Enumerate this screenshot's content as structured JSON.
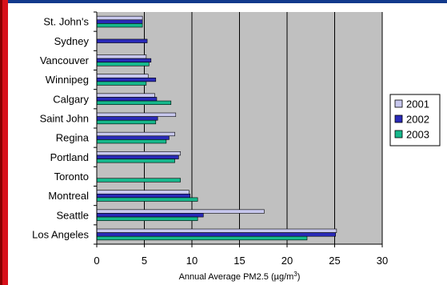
{
  "colors": {
    "plot_bg": "#c0c0c0",
    "series_2001": "#c8c8ee",
    "series_2002": "#2a2ab8",
    "series_2003": "#16b88c",
    "frame_red": "#d8101a",
    "frame_blue": "#123a8c"
  },
  "chart_data": {
    "type": "bar",
    "orientation": "horizontal",
    "categories": [
      "St. John's",
      "Sydney",
      "Vancouver",
      "Winnipeg",
      "Calgary",
      "Saint John",
      "Regina",
      "Portland",
      "Toronto",
      "Montreal",
      "Seattle",
      "Los Angeles"
    ],
    "series": [
      {
        "name": "2001",
        "values": [
          4.8,
          0,
          5.2,
          5.4,
          6.1,
          8.3,
          8.2,
          8.8,
          0,
          9.7,
          17.6,
          25.2
        ]
      },
      {
        "name": "2002",
        "values": [
          4.8,
          5.3,
          5.7,
          6.2,
          6.3,
          6.4,
          7.6,
          8.6,
          0,
          9.8,
          11.2,
          25.1
        ]
      },
      {
        "name": "2003",
        "values": [
          4.8,
          0,
          5.5,
          5.2,
          7.8,
          6.2,
          7.3,
          8.2,
          8.8,
          10.6,
          10.6,
          22.1
        ]
      }
    ],
    "xlabel_prefix": "Annual Average PM2.5 (",
    "xlabel_unit": "µg/m",
    "xlabel_sup": "3",
    "xlabel_suffix": ")",
    "xlim": [
      0,
      30
    ],
    "xticks": [
      "0",
      "5",
      "10",
      "15",
      "20",
      "25",
      "30"
    ],
    "grid": true,
    "legend_position": "right"
  }
}
